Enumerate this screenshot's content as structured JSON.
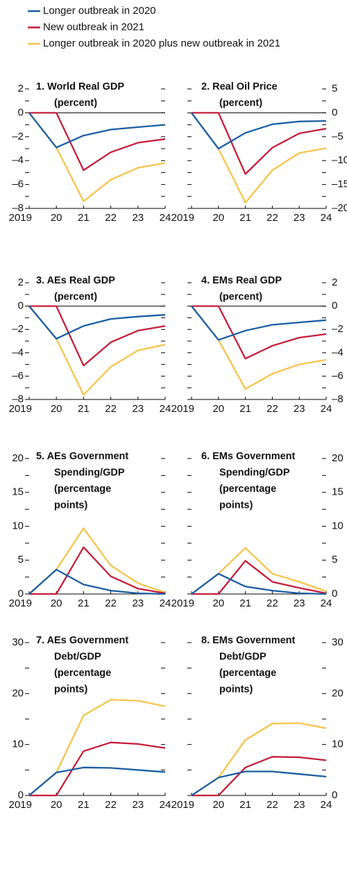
{
  "legend": [
    {
      "name": "Longer outbreak in 2020",
      "color": "#1a5ea3"
    },
    {
      "name": "New outbreak in 2021",
      "color": "#c41e3a"
    },
    {
      "name": "Longer outbreak in 2020 plus new outbreak in 2021",
      "color": "#f7c44c"
    }
  ],
  "chart_data": [
    {
      "type": "line",
      "title": [
        "1. World Real GDP",
        "(percent)"
      ],
      "categories": [
        "2019",
        "20",
        "21",
        "22",
        "23",
        "24"
      ],
      "ylim": [
        -8,
        2
      ],
      "yticks": [
        {
          "value": -8,
          "label": "–8"
        },
        {
          "value": -6,
          "label": "–6"
        },
        {
          "value": -4,
          "label": "–4"
        },
        {
          "value": -2,
          "label": "–2"
        },
        0,
        2
      ],
      "yminor": [
        -7,
        -5,
        -3,
        -1,
        1
      ],
      "series": [
        {
          "values": [
            0,
            -2.9,
            -1.9,
            -1.4,
            -1.2,
            -1.0
          ]
        },
        {
          "values": [
            0,
            0,
            -4.8,
            -3.3,
            -2.5,
            -2.2
          ]
        },
        {
          "values": [
            0,
            -2.9,
            -7.4,
            -5.6,
            -4.6,
            -4.2
          ]
        }
      ]
    },
    {
      "type": "line",
      "title": [
        "2. Real Oil Price",
        "(percent)"
      ],
      "categories": [
        "2019",
        "20",
        "21",
        "22",
        "23",
        "24"
      ],
      "ylim": [
        -20,
        5
      ],
      "yticks": [
        {
          "value": -20,
          "label": "–20"
        },
        {
          "value": -15,
          "label": "–15"
        },
        {
          "value": -10,
          "label": "–10"
        },
        {
          "value": -5,
          "label": "–5"
        },
        0,
        5
      ],
      "yminor": [
        -17.5,
        -12.5,
        -7.5,
        -2.5,
        2.5
      ],
      "series": [
        {
          "values": [
            0,
            -7.5,
            -4.2,
            -2.4,
            -1.8,
            -1.7
          ]
        },
        {
          "values": [
            0,
            0,
            -12.8,
            -7.3,
            -4.3,
            -3.3
          ]
        },
        {
          "values": [
            0,
            -7.5,
            -18.8,
            -12,
            -8.4,
            -7.4
          ]
        }
      ]
    },
    {
      "type": "line",
      "title": [
        "3. AEs Real GDP",
        "(percent)"
      ],
      "categories": [
        "2019",
        "20",
        "21",
        "22",
        "23",
        "24"
      ],
      "ylim": [
        -8,
        2
      ],
      "yticks": [
        {
          "value": -8,
          "label": "–8"
        },
        {
          "value": -6,
          "label": "–6"
        },
        {
          "value": -4,
          "label": "–4"
        },
        {
          "value": -2,
          "label": "–2"
        },
        0,
        2
      ],
      "yminor": [
        -7,
        -5,
        -3,
        -1,
        1
      ],
      "series": [
        {
          "values": [
            0,
            -2.8,
            -1.7,
            -1.1,
            -0.9,
            -0.75
          ]
        },
        {
          "values": [
            0,
            0,
            -5.1,
            -3.1,
            -2.1,
            -1.7
          ]
        },
        {
          "values": [
            0,
            -2.8,
            -7.6,
            -5.2,
            -3.8,
            -3.3
          ]
        }
      ]
    },
    {
      "type": "line",
      "title": [
        "4. EMs Real GDP",
        "(percent)"
      ],
      "categories": [
        "2019",
        "20",
        "21",
        "22",
        "23",
        "24"
      ],
      "ylim": [
        -8,
        2
      ],
      "yticks": [
        {
          "value": -8,
          "label": "–8"
        },
        {
          "value": -6,
          "label": "–6"
        },
        {
          "value": -4,
          "label": "–4"
        },
        {
          "value": -2,
          "label": "–2"
        },
        0,
        2
      ],
      "yminor": [
        -7,
        -5,
        -3,
        -1,
        1
      ],
      "series": [
        {
          "values": [
            0,
            -2.9,
            -2.1,
            -1.6,
            -1.4,
            -1.2
          ]
        },
        {
          "values": [
            0,
            0,
            -4.5,
            -3.4,
            -2.7,
            -2.4
          ]
        },
        {
          "values": [
            0,
            -2.9,
            -7.1,
            -5.8,
            -5.0,
            -4.6
          ]
        }
      ]
    },
    {
      "type": "line",
      "title": [
        "5. AEs Government",
        "Spending/GDP",
        "(percentage",
        "points)"
      ],
      "categories": [
        "2019",
        "20",
        "21",
        "22",
        "23",
        "24"
      ],
      "ylim": [
        0,
        20
      ],
      "yticks": [
        0,
        5,
        10,
        15,
        20
      ],
      "yminor": [
        2.5,
        7.5,
        12.5,
        17.5
      ],
      "series": [
        {
          "values": [
            0,
            3.6,
            1.4,
            0.5,
            0.1,
            0
          ]
        },
        {
          "values": [
            0,
            0,
            6.9,
            2.6,
            0.8,
            0.1
          ]
        },
        {
          "values": [
            0,
            3.6,
            9.7,
            4.2,
            1.6,
            0.2
          ]
        }
      ]
    },
    {
      "type": "line",
      "title": [
        "6. EMs Government",
        "Spending/GDP",
        "(percentage",
        "points)"
      ],
      "categories": [
        "2019",
        "20",
        "21",
        "22",
        "23",
        "24"
      ],
      "ylim": [
        0,
        20
      ],
      "yticks": [
        0,
        5,
        10,
        15,
        20
      ],
      "yminor": [
        2.5,
        7.5,
        12.5,
        17.5
      ],
      "series": [
        {
          "values": [
            0,
            3.0,
            1.1,
            0.5,
            0.1,
            0
          ]
        },
        {
          "values": [
            0,
            0,
            4.9,
            1.8,
            0.9,
            0.1
          ]
        },
        {
          "values": [
            0,
            3.0,
            6.8,
            3.0,
            1.8,
            0.4
          ]
        }
      ]
    },
    {
      "type": "line",
      "title": [
        "7. AEs Government",
        "Debt/GDP",
        "(percentage",
        "points)"
      ],
      "categories": [
        "2019",
        "20",
        "21",
        "22",
        "23",
        "24"
      ],
      "ylim": [
        0,
        30
      ],
      "yticks": [
        0,
        10,
        20,
        30
      ],
      "yminor": [
        5,
        15,
        25
      ],
      "series": [
        {
          "values": [
            0,
            4.5,
            5.5,
            5.4,
            5.0,
            4.6
          ]
        },
        {
          "values": [
            0,
            0,
            8.7,
            10.4,
            10.1,
            9.3
          ]
        },
        {
          "values": [
            0,
            4.5,
            15.7,
            18.8,
            18.6,
            17.5
          ]
        }
      ]
    },
    {
      "type": "line",
      "title": [
        "8. EMs Government",
        "Debt/GDP",
        "(percentage",
        "points)"
      ],
      "categories": [
        "2019",
        "20",
        "21",
        "22",
        "23",
        "24"
      ],
      "ylim": [
        0,
        30
      ],
      "yticks": [
        0,
        10,
        20,
        30
      ],
      "yminor": [
        5,
        15,
        25
      ],
      "series": [
        {
          "values": [
            0,
            3.5,
            4.7,
            4.7,
            4.2,
            3.7
          ]
        },
        {
          "values": [
            0,
            0,
            5.5,
            7.6,
            7.5,
            6.9
          ]
        },
        {
          "values": [
            0,
            3.5,
            10.9,
            14.1,
            14.2,
            13.2
          ]
        }
      ]
    }
  ]
}
